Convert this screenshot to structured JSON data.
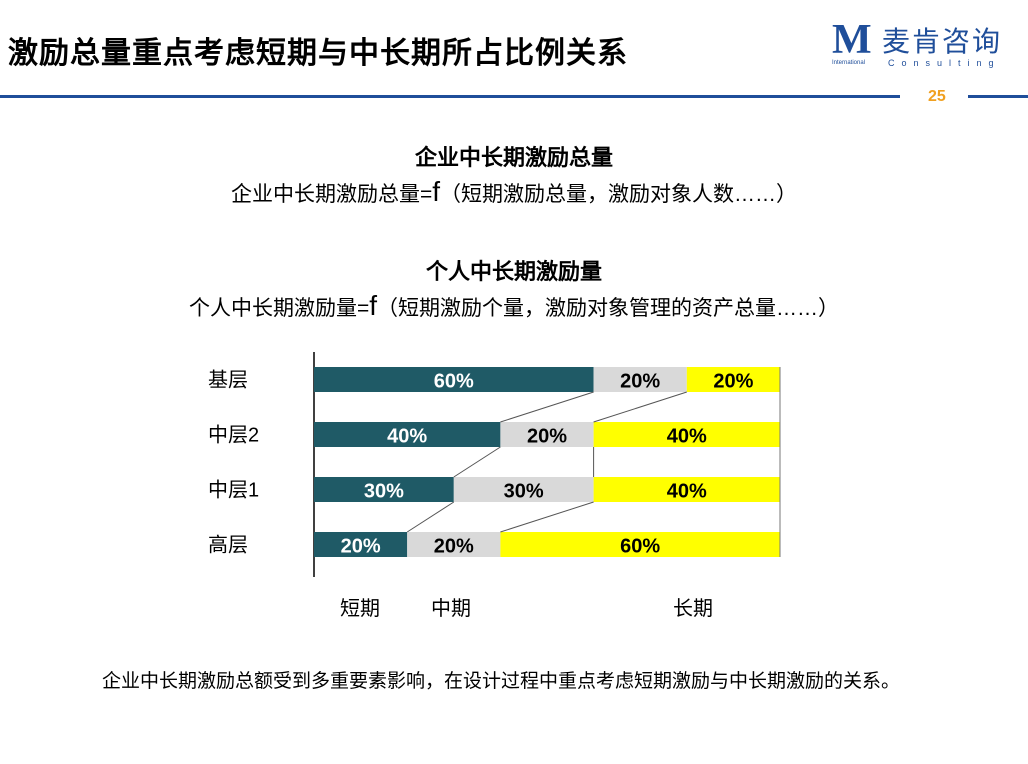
{
  "header": {
    "title": "激励总量重点考虑短期与中长期所占比例关系",
    "logo_mark": "M",
    "logo_cn": "麦肯咨询",
    "logo_en_small": "International",
    "logo_en": "Consulting",
    "page_number": "25"
  },
  "section1": {
    "heading": "企业中长期激励总量",
    "formula_prefix": "企业中长期激励总量=",
    "formula_f": "f",
    "formula_suffix": "（短期激励总量，激励对象人数……）"
  },
  "section2": {
    "heading": "个人中长期激励量",
    "formula_prefix": "个人中长期激励量=",
    "formula_f": "f",
    "formula_suffix": "（短期激励个量，激励对象管理的资产总量……）"
  },
  "footer": {
    "text": "企业中长期激励总额受到多重要素影响，在设计过程中重点考虑短期激励与中长期激励的关系。"
  },
  "colors": {
    "short": "#1f5a66",
    "mid": "#d9d9d9",
    "long": "#ffff00",
    "brand": "#1f4e9a",
    "page_number": "#f0a020"
  },
  "chart_data": {
    "type": "bar",
    "orientation": "horizontal",
    "stacked": true,
    "categories": [
      "基层",
      "中层2",
      "中层1",
      "高层"
    ],
    "series": [
      {
        "name": "短期",
        "values": [
          60,
          40,
          30,
          20
        ]
      },
      {
        "name": "中期",
        "values": [
          20,
          20,
          30,
          20
        ]
      },
      {
        "name": "长期",
        "values": [
          20,
          40,
          40,
          60
        ]
      }
    ],
    "data_labels": [
      [
        "60%",
        "20%",
        "20%"
      ],
      [
        "40%",
        "20%",
        "40%"
      ],
      [
        "30%",
        "30%",
        "40%"
      ],
      [
        "20%",
        "20%",
        "60%"
      ]
    ],
    "xlim": [
      0,
      100
    ],
    "unit": "%",
    "legend_position": "bottom",
    "grid": false
  }
}
